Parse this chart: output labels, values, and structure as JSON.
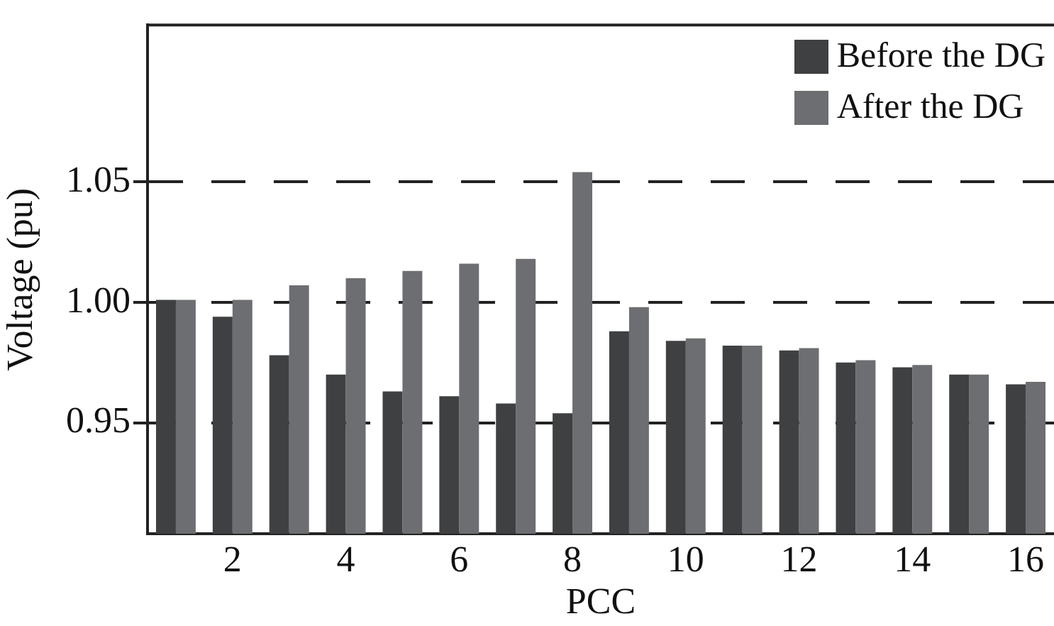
{
  "chart_data": {
    "type": "bar",
    "xlabel": "PCC",
    "ylabel": "Voltage (pu)",
    "categories": [
      null,
      "2",
      null,
      "4",
      null,
      "6",
      null,
      "8",
      null,
      "10",
      null,
      "12",
      null,
      "14",
      null,
      "16"
    ],
    "series": [
      {
        "name": "Before the DG",
        "color": "#3f4042",
        "values": [
          1.001,
          0.994,
          0.978,
          0.97,
          0.963,
          0.961,
          0.958,
          0.954,
          0.988,
          0.984,
          0.982,
          0.98,
          0.975,
          0.973,
          0.97,
          0.966
        ]
      },
      {
        "name": "After the DG",
        "color": "#6d6e72",
        "values": [
          1.001,
          1.001,
          1.007,
          1.01,
          1.013,
          1.016,
          1.018,
          1.054,
          0.998,
          0.985,
          0.982,
          0.981,
          0.976,
          0.974,
          0.97,
          0.967
        ]
      }
    ],
    "ylim": [
      0.904,
      1.115
    ],
    "yticks": [
      {
        "value": 0.95,
        "label": "0.95"
      },
      {
        "value": 1.0,
        "label": "1.00"
      },
      {
        "value": 1.05,
        "label": "1.05"
      }
    ],
    "grid": "y",
    "line_style": "dashed",
    "legend": "top right"
  }
}
